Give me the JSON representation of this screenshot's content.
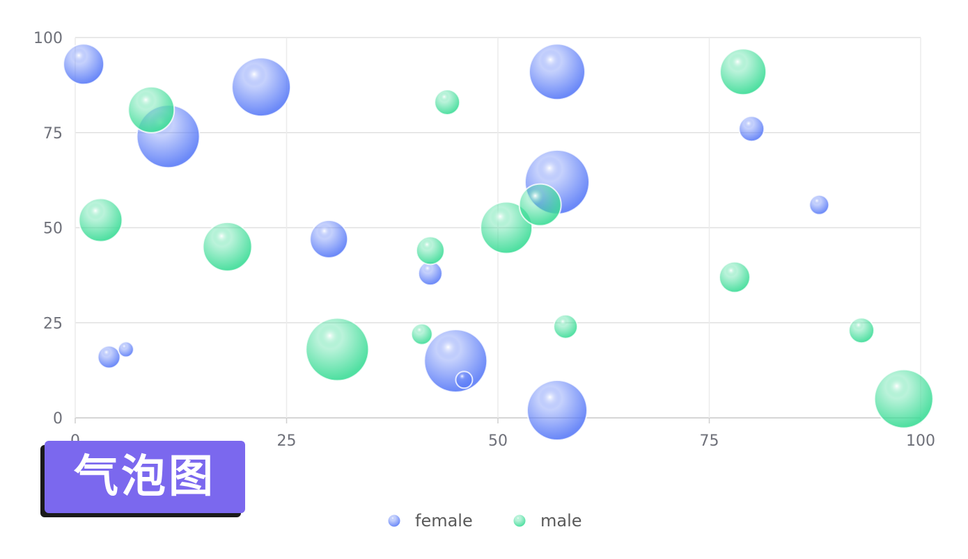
{
  "badge": {
    "text": "气泡图",
    "color": "#7b68ee"
  },
  "chart_data": {
    "type": "scatter",
    "subtype": "bubble",
    "xlim": [
      0,
      100
    ],
    "ylim": [
      0,
      100
    ],
    "x_ticks": [
      "0",
      "25",
      "50",
      "75",
      "100"
    ],
    "y_ticks": [
      "0",
      "25",
      "50",
      "75",
      "100"
    ],
    "grid": true,
    "legend_position": "bottom-center",
    "series": [
      {
        "name": "female",
        "color": "#5b7cf7",
        "points": [
          {
            "x": 1,
            "y": 93,
            "size": 29
          },
          {
            "x": 11,
            "y": 74,
            "size": 45
          },
          {
            "x": 22,
            "y": 87,
            "size": 42
          },
          {
            "x": 30,
            "y": 47,
            "size": 27
          },
          {
            "x": 42,
            "y": 38,
            "size": 17
          },
          {
            "x": 45,
            "y": 15,
            "size": 45
          },
          {
            "x": 46,
            "y": 10,
            "size": 12
          },
          {
            "x": 57,
            "y": 91,
            "size": 40
          },
          {
            "x": 57,
            "y": 62,
            "size": 46
          },
          {
            "x": 57,
            "y": 2,
            "size": 43
          },
          {
            "x": 80,
            "y": 76,
            "size": 18
          },
          {
            "x": 88,
            "y": 56,
            "size": 14
          },
          {
            "x": 4,
            "y": 16,
            "size": 16
          },
          {
            "x": 6,
            "y": 18,
            "size": 11
          }
        ]
      },
      {
        "name": "male",
        "color": "#3ddc97",
        "points": [
          {
            "x": 9,
            "y": 81,
            "size": 33
          },
          {
            "x": 3,
            "y": 52,
            "size": 31
          },
          {
            "x": 18,
            "y": 45,
            "size": 35
          },
          {
            "x": 31,
            "y": 18,
            "size": 45
          },
          {
            "x": 41,
            "y": 22,
            "size": 15
          },
          {
            "x": 42,
            "y": 44,
            "size": 20
          },
          {
            "x": 44,
            "y": 83,
            "size": 18
          },
          {
            "x": 51,
            "y": 50,
            "size": 37
          },
          {
            "x": 55,
            "y": 56,
            "size": 30
          },
          {
            "x": 58,
            "y": 24,
            "size": 17
          },
          {
            "x": 78,
            "y": 37,
            "size": 22
          },
          {
            "x": 79,
            "y": 91,
            "size": 33
          },
          {
            "x": 93,
            "y": 23,
            "size": 18
          },
          {
            "x": 98,
            "y": 5,
            "size": 42
          }
        ]
      }
    ]
  }
}
